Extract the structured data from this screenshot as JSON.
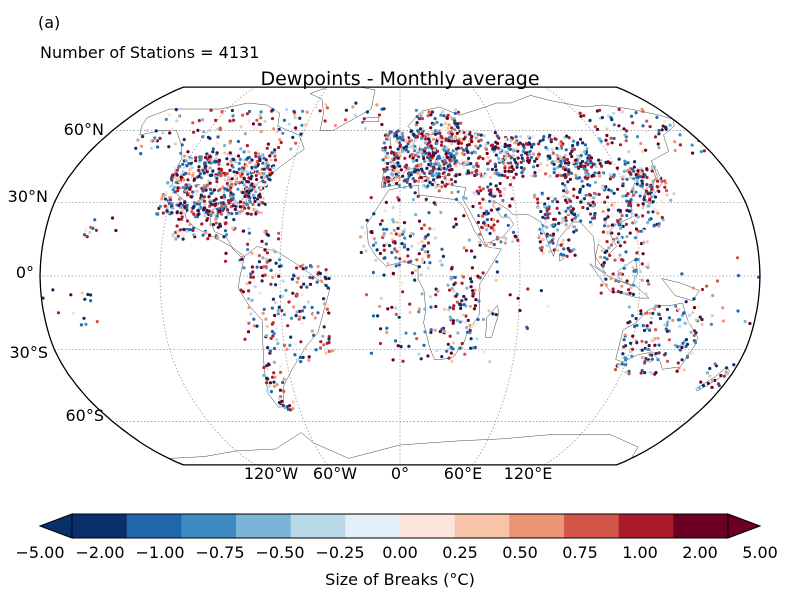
{
  "panel_label": "(a)",
  "stations_text": "Number of Stations = 4131",
  "title": "Dewpoints - Monthly average",
  "lat_labels": [
    "60°N",
    "30°N",
    "0°",
    "30°S",
    "60°S"
  ],
  "lon_labels": [
    "120°W",
    "60°W",
    "0°",
    "60°E",
    "120°E"
  ],
  "colorbar": {
    "label": "Size of Breaks ($^\\circ$C)",
    "label_display": "Size of Breaks (°C)",
    "ticks": [
      "−5.00",
      "−2.00",
      "−1.00",
      "−0.75",
      "−0.50",
      "−0.25",
      "0.00",
      "0.25",
      "0.50",
      "0.75",
      "1.00",
      "2.00",
      "5.00"
    ],
    "colors": [
      "#053061",
      "#2166ac",
      "#4393c3",
      "#92c5de",
      "#d1e5f0",
      "#f7f7f7",
      "#fddbc7",
      "#f4a582",
      "#d6604d",
      "#b2182b",
      "#67001f",
      "#67001f"
    ],
    "bins": [
      "#08306b",
      "#1f66ad",
      "#3d8bc2",
      "#7ab4d6",
      "#b9d9e9",
      "#e4eef6",
      "#fbe5dc",
      "#f8c4a9",
      "#ec9575",
      "#d2554a",
      "#ac1a2c",
      "#6b0022"
    ]
  }
}
